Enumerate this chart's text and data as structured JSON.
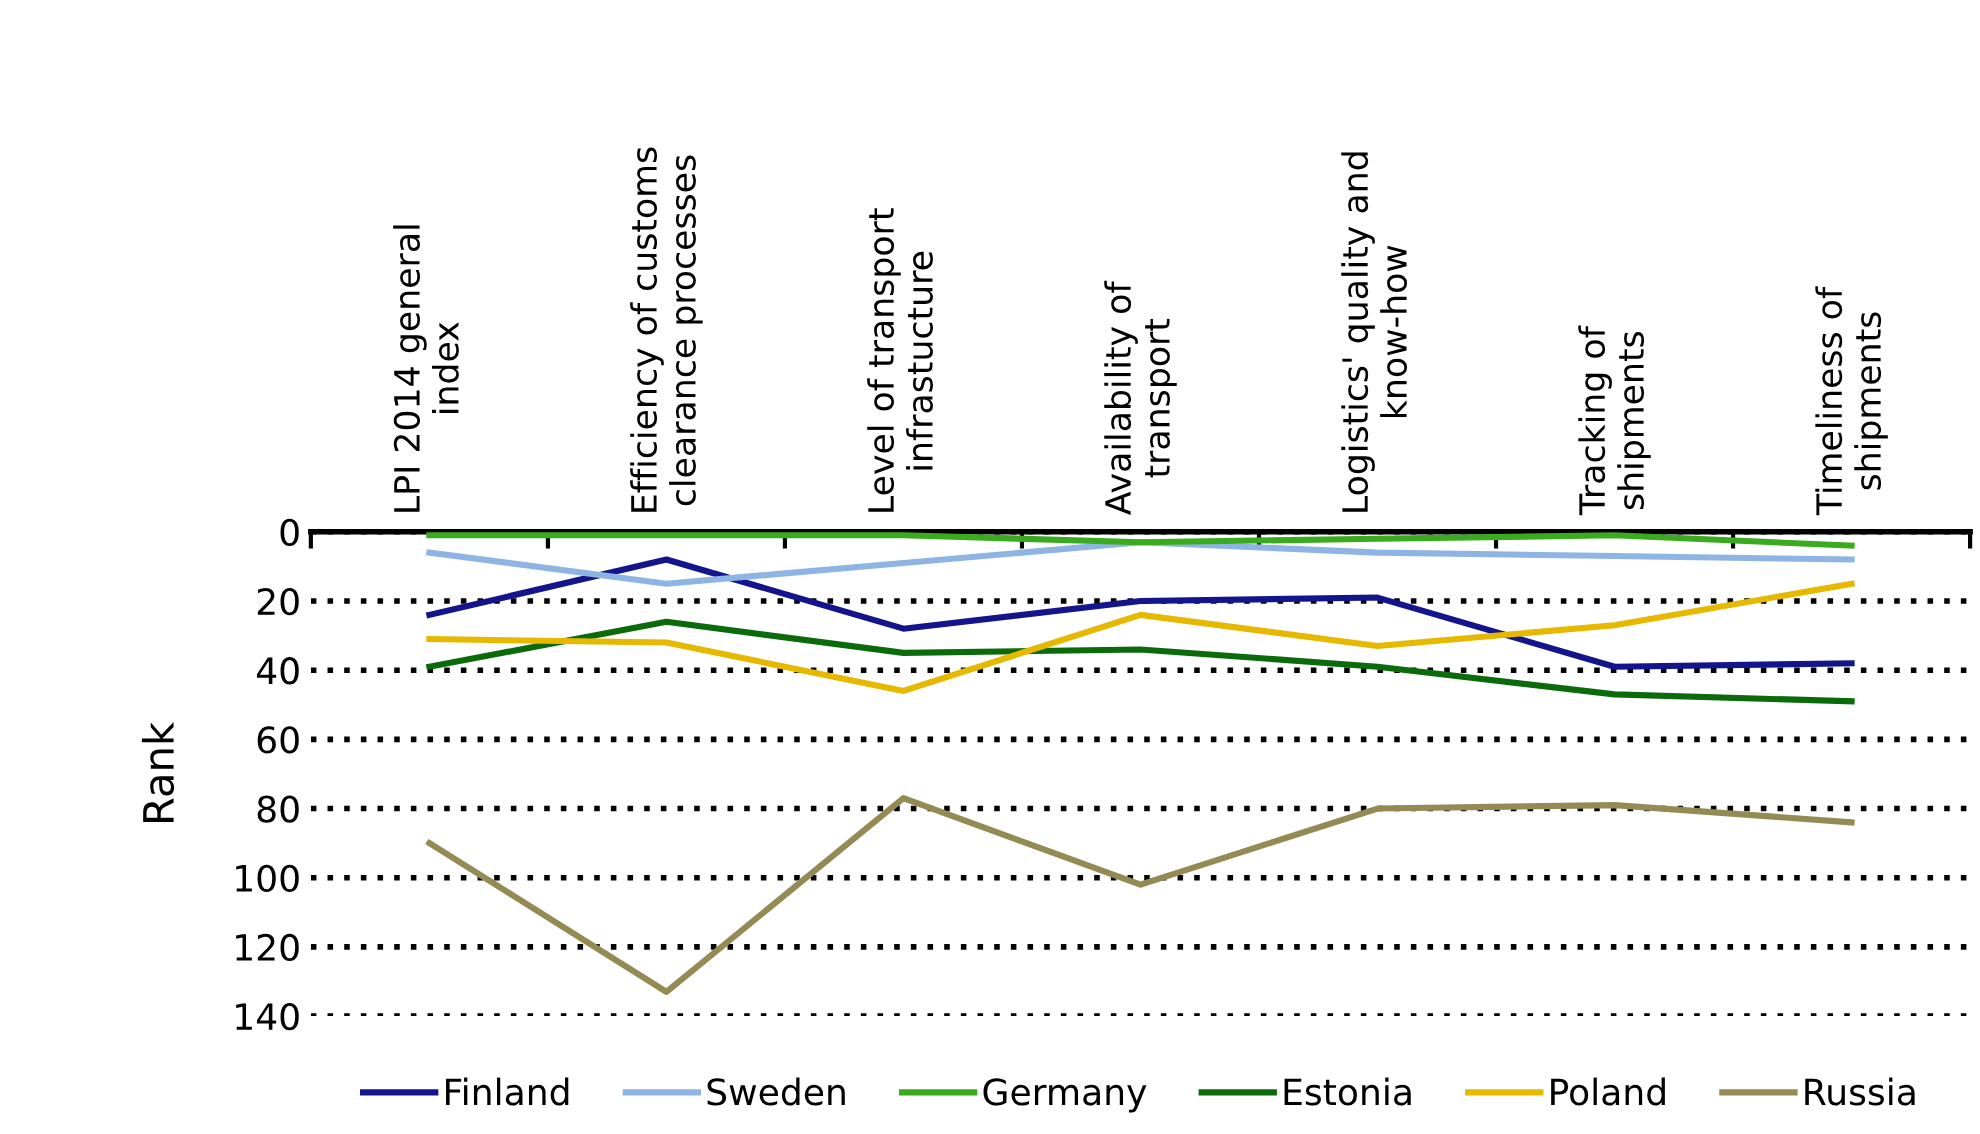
{
  "chart_data": {
    "type": "line",
    "ylabel": "Rank",
    "categories": [
      "LPI 2014 general\nindex",
      "Efficiency of customs\nclearance processes",
      "Level of transport\ninfrastucture",
      "Availability of\ntransport",
      "Logistics' quality and\nknow-how",
      "Tracking of\nshipments",
      "Timeliness of\nshipments"
    ],
    "series": [
      {
        "name": "Finland",
        "color": "#14148c",
        "values": [
          24,
          8,
          28,
          20,
          19,
          39,
          38
        ]
      },
      {
        "name": "Sweden",
        "color": "#8db4e2",
        "values": [
          6,
          15,
          9,
          3,
          6,
          7,
          8
        ]
      },
      {
        "name": "Germany",
        "color": "#3aaa1e",
        "values": [
          1,
          1,
          1,
          3,
          2,
          1,
          4
        ]
      },
      {
        "name": "Estonia",
        "color": "#0b6b0b",
        "values": [
          39,
          26,
          35,
          34,
          39,
          47,
          49
        ]
      },
      {
        "name": "Poland",
        "color": "#e6b800",
        "values": [
          31,
          32,
          46,
          24,
          33,
          27,
          15
        ]
      },
      {
        "name": "Russia",
        "color": "#948a54",
        "values": [
          90,
          133,
          77,
          102,
          80,
          79,
          84
        ]
      }
    ],
    "ylim": [
      140,
      0
    ],
    "yticks": [
      0,
      20,
      40,
      60,
      80,
      100,
      120,
      140
    ],
    "grid": "y",
    "legend": "bottom",
    "line_style": "solid",
    "marker": "none"
  }
}
